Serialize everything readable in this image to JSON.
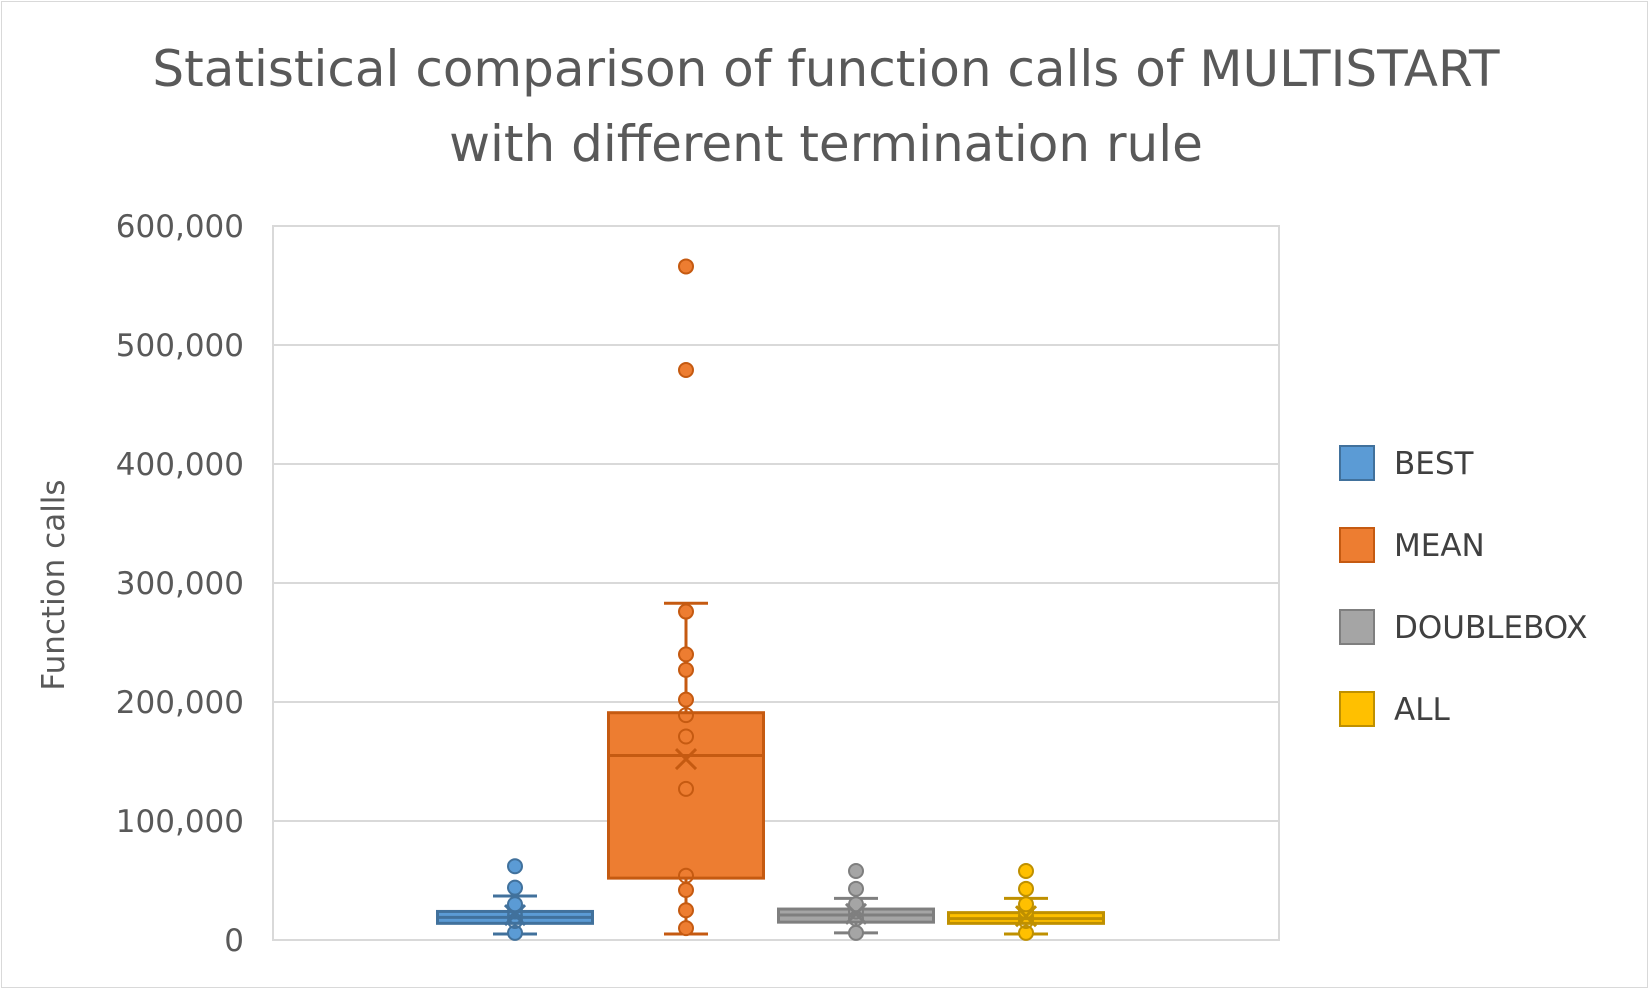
{
  "chart_data": {
    "type": "box",
    "title_lines": [
      "Statistical comparison of function calls of MULTISTART",
      "with different termination rule"
    ],
    "ylabel": "Function calls",
    "xlabel": "",
    "ylim": [
      0,
      600000
    ],
    "yticks": [
      0,
      100000,
      200000,
      300000,
      400000,
      500000,
      600000
    ],
    "ytick_labels": [
      "0",
      "100,000",
      "200,000",
      "300,000",
      "400,000",
      "500,000",
      "600,000"
    ],
    "grid": true,
    "legend_position": "right",
    "series": [
      {
        "name": "BEST",
        "color": "#5b9bd5",
        "stroke": "#41719c",
        "whisker_low": 5000,
        "q1": 14000,
        "median": 19000,
        "q3": 24000,
        "whisker_high": 37000,
        "mean": 21000,
        "points": [
          6000,
          16000,
          20000,
          24000,
          30000,
          44000,
          62000
        ]
      },
      {
        "name": "MEAN",
        "color": "#ed7d31",
        "stroke": "#c55a11",
        "whisker_low": 5000,
        "q1": 52000,
        "median": 155000,
        "q3": 191000,
        "whisker_high": 283000,
        "mean": 152000,
        "points": [
          10000,
          25000,
          42000,
          54000,
          127000,
          171000,
          189000,
          202000,
          227000,
          240000,
          276000,
          479000,
          566000
        ]
      },
      {
        "name": "DOUBLEBOX",
        "color": "#a5a5a5",
        "stroke": "#7f7f7f",
        "whisker_low": 6000,
        "q1": 15000,
        "median": 21000,
        "q3": 26000,
        "whisker_high": 35000,
        "mean": 22000,
        "points": [
          6000,
          18000,
          24000,
          30000,
          43000,
          58000
        ]
      },
      {
        "name": "ALL",
        "color": "#ffc000",
        "stroke": "#bf9000",
        "whisker_low": 5000,
        "q1": 14000,
        "median": 18000,
        "q3": 23000,
        "whisker_high": 35000,
        "mean": 20000,
        "points": [
          6000,
          16000,
          20000,
          24000,
          30000,
          43000,
          58000
        ]
      }
    ]
  }
}
